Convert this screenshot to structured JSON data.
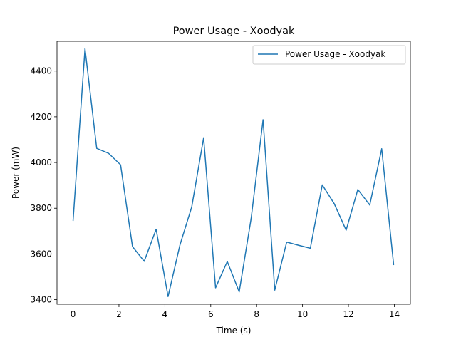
{
  "chart_data": {
    "type": "line",
    "title": "Power Usage - Xoodyak",
    "xlabel": "Time (s)",
    "ylabel": "Power (mW)",
    "xlim": [
      -0.7,
      14.7
    ],
    "ylim": [
      3380,
      4530
    ],
    "xticks": [
      0,
      2,
      4,
      6,
      8,
      10,
      12,
      14
    ],
    "yticks": [
      3400,
      3600,
      3800,
      4000,
      4200,
      4400
    ],
    "grid": false,
    "legend_position": "top-right",
    "series": [
      {
        "name": "Power Usage - Xoodyak",
        "color": "#1f77b4",
        "x": [
          0.0,
          0.52,
          1.03,
          1.55,
          2.07,
          2.59,
          3.1,
          3.62,
          4.14,
          4.66,
          5.17,
          5.69,
          6.21,
          6.72,
          7.24,
          7.76,
          8.28,
          8.79,
          9.31,
          9.83,
          10.34,
          10.86,
          11.38,
          11.9,
          12.41,
          12.93,
          13.45,
          13.97
        ],
        "y": [
          3745,
          4498,
          4062,
          4040,
          3990,
          3632,
          3568,
          3708,
          3414,
          3640,
          3805,
          4108,
          3452,
          3567,
          3434,
          3755,
          4187,
          3442,
          3652,
          3638,
          3625,
          3902,
          3820,
          3704,
          3882,
          3814,
          4060,
          3553
        ]
      }
    ]
  }
}
